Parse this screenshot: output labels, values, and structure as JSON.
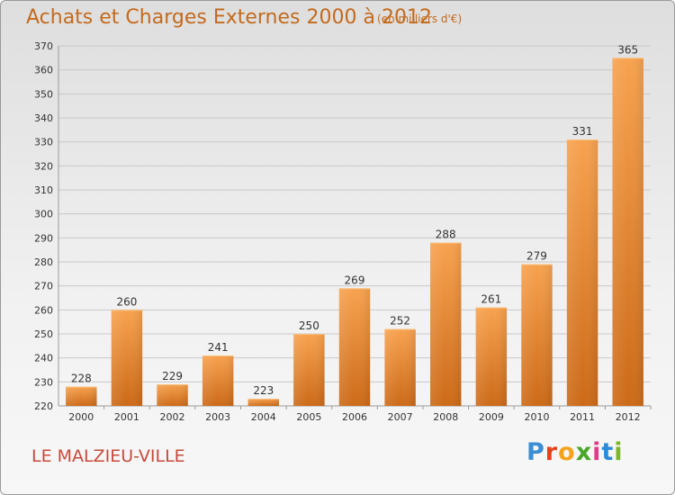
{
  "header": {
    "title": "Achats et Charges Externes 2000 à 2012",
    "subtitle": "(en milliers d'€)"
  },
  "footer": {
    "commune": "LE MALZIEU-VILLE",
    "brand": [
      "P",
      "r",
      "o",
      "x",
      "i",
      "t",
      "i"
    ]
  },
  "colors": {
    "bar_top": "#f7a24f",
    "bar_bottom": "#cc6a18",
    "text_accent": "#c46a1c"
  },
  "chart_data": {
    "type": "bar",
    "categories": [
      "2000",
      "2001",
      "2002",
      "2003",
      "2004",
      "2005",
      "2006",
      "2007",
      "2008",
      "2009",
      "2010",
      "2011",
      "2012"
    ],
    "values": [
      228,
      260,
      229,
      241,
      223,
      250,
      269,
      252,
      288,
      261,
      279,
      331,
      365
    ],
    "data_labels": [
      "228",
      "260",
      "229",
      "241",
      "223",
      "250",
      "269",
      "252",
      "288",
      "261",
      "279",
      "331",
      "365"
    ],
    "title": "Achats et Charges Externes 2000 à 2012",
    "subtitle": "(en milliers d'€)",
    "ylim": [
      220,
      370
    ],
    "yticks": [
      220,
      230,
      240,
      250,
      260,
      270,
      280,
      290,
      300,
      310,
      320,
      330,
      340,
      350,
      360,
      370
    ],
    "grid": true,
    "legend": "none"
  }
}
